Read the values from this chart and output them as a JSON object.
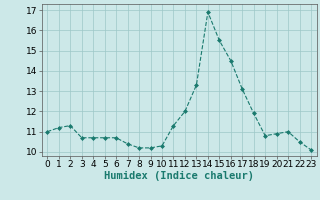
{
  "x": [
    0,
    1,
    2,
    3,
    4,
    5,
    6,
    7,
    8,
    9,
    10,
    11,
    12,
    13,
    14,
    15,
    16,
    17,
    18,
    19,
    20,
    21,
    22,
    23
  ],
  "y": [
    11.0,
    11.2,
    11.3,
    10.7,
    10.7,
    10.7,
    10.7,
    10.4,
    10.2,
    10.2,
    10.3,
    11.3,
    12.0,
    13.3,
    16.9,
    15.5,
    14.5,
    13.1,
    11.9,
    10.8,
    10.9,
    11.0,
    10.5,
    10.1
  ],
  "line_color": "#1a7a6e",
  "marker": "D",
  "marker_size": 2.0,
  "xlabel": "Humidex (Indice chaleur)",
  "xlim": [
    -0.5,
    23.5
  ],
  "ylim": [
    9.8,
    17.3
  ],
  "yticks": [
    10,
    11,
    12,
    13,
    14,
    15,
    16,
    17
  ],
  "xticks": [
    0,
    1,
    2,
    3,
    4,
    5,
    6,
    7,
    8,
    9,
    10,
    11,
    12,
    13,
    14,
    15,
    16,
    17,
    18,
    19,
    20,
    21,
    22,
    23
  ],
  "bg_color": "#cce8e8",
  "grid_color": "#9ec8c8",
  "tick_label_size": 6.5,
  "xlabel_size": 7.5
}
